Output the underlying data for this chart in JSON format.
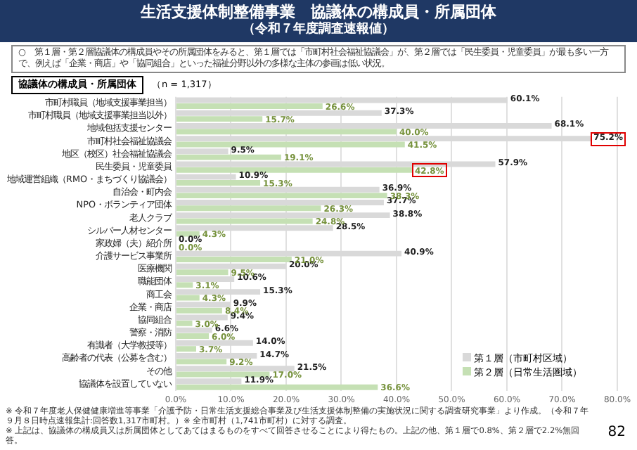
{
  "chart_data": {
    "type": "bar",
    "orientation": "horizontal",
    "title": "生活支援体制整備事業　協議体の構成員・所属団体",
    "subtitle": "（令和７年度調査速報値）",
    "annotations": [
      "○　第１層・第２層協議体の構成員やその所属団体をみると、第１層では「市町村社会福祉協議会」が、第２層では「民生委員・児童委員」が最も多い一方で、例えば「企業・商店」や「協同組合」といった福祉分野以外の多様な主体の参画は低い状況。",
      "協議体の構成員・所属団体",
      "（n = 1,317）",
      "※ 令和７年度老人保健健康増進等事業「介護予防・日常生活支援総合事業及び生活支援体制整備の実施状況に関する調査研究事業」より作成。（令和７年９月８日時点速報集計:回答数1,317市町村。）※ 全市町村（1,741市町村）に対する調査。",
      "※ 上記は、協議体の構成員又は所属団体としてあてはまるものをすべて回答させることにより得たもの。上記の他、第１層で0.8%、第２層で2.2%無回答。",
      "82"
    ],
    "categories": [
      "市町村職員（地域支援事業担当）",
      "市町村職員（地域支援事業担当以外）",
      "地域包括支援センター",
      "市町村社会福祉協議会",
      "地区（校区）社会福祉協議会",
      "民生委員・児童委員",
      "地域運営組織（RMO・まちづくり協議会）",
      "自治会・町内会",
      "NPO・ボランティア団体",
      "老人クラブ",
      "シルバー人材センター",
      "家政婦（夫）紹介所",
      "介護サービス事業所",
      "医療機関",
      "職能団体",
      "商工会",
      "企業・商店",
      "協同組合",
      "警察・消防",
      "有識者（大学教授等）",
      "高齢者の代表（公募を含む）",
      "その他",
      "協議体を設置していない"
    ],
    "series": [
      {
        "name": "第１層（市町村区域）",
        "color": "#d9d9d9",
        "values": [
          60.1,
          37.3,
          68.1,
          75.2,
          9.5,
          57.9,
          10.9,
          36.9,
          37.7,
          38.8,
          28.5,
          0.0,
          40.9,
          20.0,
          10.6,
          15.3,
          9.9,
          9.4,
          6.6,
          14.0,
          14.7,
          21.5,
          11.9
        ],
        "value_labels": [
          "60.1%",
          "37.3%",
          "68.1%",
          "75.2%",
          "9.5%",
          "57.9%",
          "10.9%",
          "36.9%",
          "37.7%",
          "38.8%",
          "28.5%",
          "0.0%",
          "40.9%",
          "20.0%",
          "10.6%",
          "15.3%",
          "9.9%",
          "9.4%",
          "6.6%",
          "14.0%",
          "14.7%",
          "21.5%",
          "11.9%"
        ]
      },
      {
        "name": "第２層（日常生活圏域）",
        "color": "#c5e0b4",
        "values": [
          26.6,
          15.7,
          40.0,
          41.5,
          19.1,
          42.8,
          15.3,
          38.3,
          26.3,
          24.8,
          4.3,
          0.0,
          21.0,
          9.5,
          3.1,
          4.3,
          8.4,
          3.0,
          6.0,
          3.7,
          9.2,
          17.0,
          36.6
        ],
        "value_labels": [
          "26.6%",
          "15.7%",
          "40.0%",
          "41.5%",
          "19.1%",
          "42.8%",
          "15.3%",
          "38.3%",
          "26.3%",
          "24.8%",
          "4.3%",
          "0.0%",
          "21.0%",
          "9.5%",
          "3.1%",
          "4.3%",
          "8.4%",
          "3.0%",
          "6.0%",
          "3.7%",
          "9.2%",
          "17.0%",
          "36.6%"
        ]
      }
    ],
    "xlim": [
      0,
      80
    ],
    "xticks": [
      {
        "value": 0,
        "label": "0.0%"
      },
      {
        "value": 10,
        "label": "10.0%"
      },
      {
        "value": 20,
        "label": "20.0%"
      },
      {
        "value": 30,
        "label": "30.0%"
      },
      {
        "value": 40,
        "label": "40.0%"
      },
      {
        "value": 50,
        "label": "50.0%"
      },
      {
        "value": 60,
        "label": "60.0%"
      },
      {
        "value": 70,
        "label": "70.0%"
      },
      {
        "value": 80,
        "label": "80.0%"
      }
    ],
    "grid": "x",
    "legend": "bottom right"
  }
}
